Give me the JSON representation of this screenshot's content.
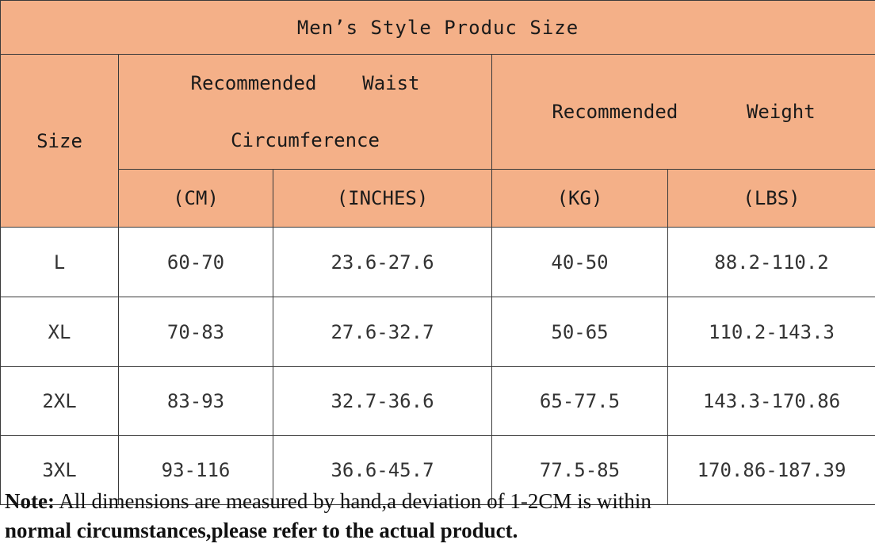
{
  "table": {
    "title": "Men’s Style Produc Size",
    "size_header": "Size",
    "waist_header": "Recommended    Waist\nCircumference",
    "weight_header": "Recommended      Weight",
    "units": [
      "(CM)",
      "(INCHES)",
      "(KG)",
      "(LBS)"
    ],
    "rows": [
      [
        "L",
        "60-70",
        "23.6-27.6",
        "40-50",
        "88.2-110.2"
      ],
      [
        "XL",
        "70-83",
        "27.6-32.7",
        "50-65",
        "110.2-143.3"
      ],
      [
        "2XL",
        "83-93",
        "32.7-36.6",
        "65-77.5",
        "143.3-170.86"
      ],
      [
        "3XL",
        "93-116",
        "36.6-45.7",
        "77.5-85",
        "170.86-187.39"
      ]
    ]
  },
  "note": {
    "label": "Note:",
    "text_line1": " All dimensions are measured by hand,a deviation of 1-2CM is within",
    "text_line2": "normal circumstances,please refer to the actual product."
  },
  "colors": {
    "header_background": "#f4b088",
    "border": "#3a3a3a",
    "body_background": "#ffffff"
  }
}
